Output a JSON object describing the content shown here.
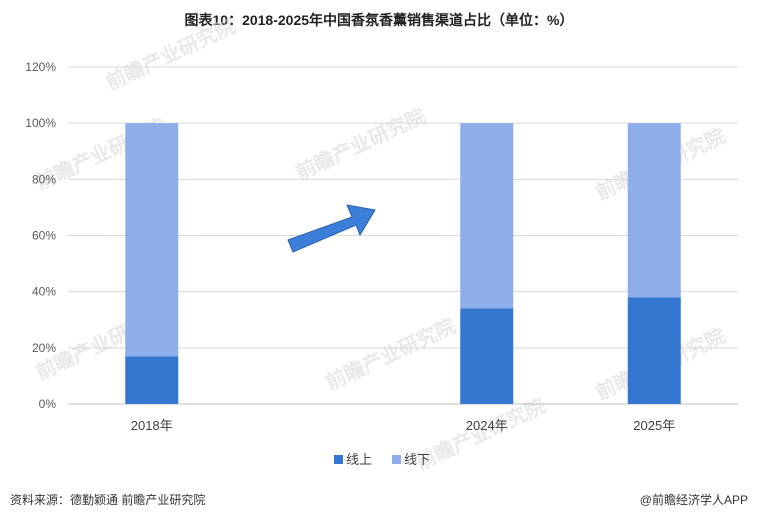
{
  "chart_data": {
    "type": "bar",
    "stacked": true,
    "title": "图表10：2018-2025年中国香氛香薰销售渠道占比（单位：%）",
    "categories": [
      "2018年",
      "",
      "2024年",
      "2025年"
    ],
    "series": [
      {
        "name": "线上",
        "values": [
          17,
          null,
          34,
          38
        ],
        "color": "#3377d0"
      },
      {
        "name": "线下",
        "values": [
          83,
          null,
          66,
          62
        ],
        "color": "#8eaeeb"
      }
    ],
    "ylim": [
      0,
      120
    ],
    "yticks": [
      "0%",
      "20%",
      "40%",
      "60%",
      "80%",
      "100%",
      "120%"
    ],
    "grid": true,
    "legend_position": "bottom",
    "annotation": "arrow-up-right",
    "arrow_color": "#3b7fd9"
  },
  "footer": {
    "source": "资料来源：德勤颖通  前瞻产业研究院",
    "credit": "@前瞻经济学人APP"
  },
  "watermark": "前瞻产业研究院"
}
